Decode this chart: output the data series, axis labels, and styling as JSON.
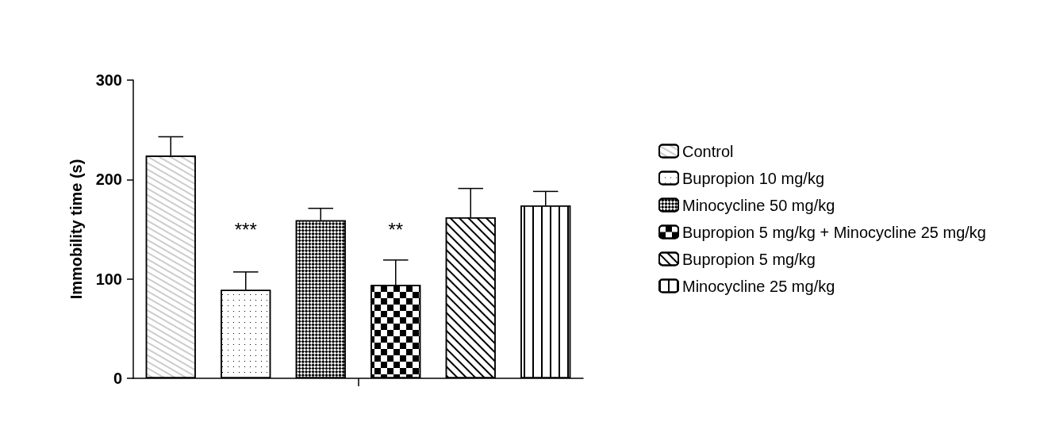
{
  "chart_data": {
    "type": "bar",
    "ylabel": "Immobility time (s)",
    "categories": [
      null
    ],
    "series": [
      {
        "name": "Control",
        "color": "#ffffff",
        "values": [
          224
        ],
        "errors": [
          19
        ]
      },
      {
        "name": "Bupropion 10 mg/kg",
        "color": "#ffffff",
        "values": [
          89
        ],
        "errors": [
          18
        ]
      },
      {
        "name": "Minocycline 50 mg/kg",
        "color": "#ffffff",
        "values": [
          159
        ],
        "errors": [
          12
        ]
      },
      {
        "name": "Bupropion 5 mg/kg + Minocycline 25 mg/kg",
        "color": "#ffffff",
        "values": [
          94
        ],
        "errors": [
          25
        ]
      },
      {
        "name": "Bupropion 5 mg/kg",
        "color": "#ffffff",
        "values": [
          162
        ],
        "errors": [
          29
        ]
      },
      {
        "name": "Minocycline 25 mg/kg",
        "color": "#ffffff",
        "values": [
          174
        ],
        "errors": [
          14
        ]
      }
    ],
    "ylim": [
      0,
      300
    ],
    "yticks": [
      0,
      100,
      200,
      300
    ],
    "grid": false,
    "legend": "right",
    "annotations": [
      "***",
      "**"
    ]
  }
}
